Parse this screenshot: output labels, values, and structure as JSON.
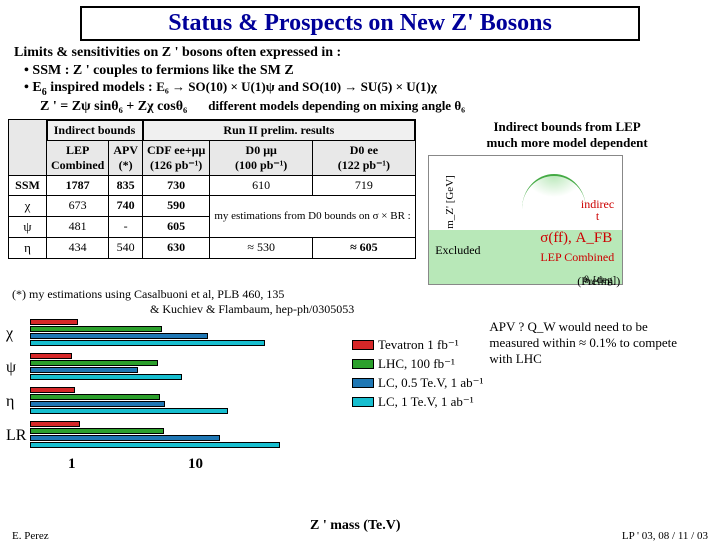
{
  "title": "Status & Prospects on New Z' Bosons",
  "intro": "Limits & sensitivities on Z ' bosons often expressed in :",
  "bullet1_prefix": "• SSM : Z ' couples to fermions like the SM Z",
  "bullet2_prefix": "• E",
  "bullet2_sub": "6",
  "bullet2_text": " inspired models :  ",
  "bullet2_math": "E₆ → SO(10) × U(1)ψ  and SO(10) → SU(5) × U(1)χ",
  "formula": "Z ' = Zψ sinθ₆ + Zχ cosθ₆",
  "formula_tail": "different models depending on mixing angle θ₆",
  "table": {
    "h_indirect": "Indirect bounds",
    "h_run2": "Run II prelim. results",
    "col_labels": [
      "",
      "LEP\nCombined",
      "APV\n(*)",
      "CDF ee+μμ\n(126 pb⁻¹)",
      "D0 μμ\n(100 pb⁻¹)",
      "D0 ee\n(122 pb⁻¹)"
    ],
    "rows": [
      {
        "model": "SSM",
        "lep": "1787",
        "apv": "835",
        "cdf": "730",
        "d0mm": "610",
        "d0ee": "719"
      },
      {
        "model": "χ",
        "lep": "673",
        "apv": "740",
        "cdf": "590",
        "est": "my estimations from D0 bounds on σ × BR :"
      },
      {
        "model": "ψ",
        "lep": "481",
        "apv": "-",
        "cdf": "605"
      },
      {
        "model": "η",
        "lep": "434",
        "apv": "540",
        "cdf": "630",
        "d0a": "≈ 530",
        "d0b": "≈ 605"
      }
    ]
  },
  "right": {
    "l1": "Indirect bounds from LEP",
    "l2": "much more model dependent",
    "indirect": "indirec\nt",
    "sigma": "σ(ff), A_FB",
    "lepcomb": "LEP Combined",
    "prelim": "(Prelim.)",
    "ylabel": "m_Z' [GeV]",
    "xlabel": "θ₆[deg]",
    "excluded": "Excluded"
  },
  "footnote": "(*) my estimations using Casalbuoni et al, PLB 460, 135\n                                              & Kuchiev & Flambaum, hep-ph/0305053",
  "barchart": {
    "rows": [
      "χ",
      "ψ",
      "η",
      "LR"
    ],
    "colors": {
      "tev": "#d62728",
      "lhc": "#2ca02c",
      "lc05": "#1f77b4",
      "lc1": "#17becf"
    },
    "bars": {
      "χ": {
        "tev": 48,
        "lhc": 132,
        "lc05": 178,
        "lc1": 235
      },
      "ψ": {
        "tev": 42,
        "lhc": 128,
        "lc05": 108,
        "lc1": 152
      },
      "η": {
        "tev": 45,
        "lhc": 130,
        "lc05": 135,
        "lc1": 198
      },
      "LR": {
        "tev": 50,
        "lhc": 134,
        "lc05": 190,
        "lc1": 250
      }
    },
    "axis": {
      "one": "1",
      "ten": "10"
    }
  },
  "legend": {
    "tev": "Tevatron 1 fb⁻¹",
    "lhc": "LHC, 100 fb⁻¹",
    "lc05": "LC, 0.5 Te.V, 1 ab⁻¹",
    "lc1": "LC, 1 Te.V, 1 ab⁻¹"
  },
  "right_bottom": "APV ? Q_W would need to be measured within ≈ 0.1% to compete with LHC",
  "zmass": "Z ' mass (Te.V)",
  "footer": {
    "left": "E. Perez",
    "right": "LP ' 03, 08 / 11 / 03"
  }
}
